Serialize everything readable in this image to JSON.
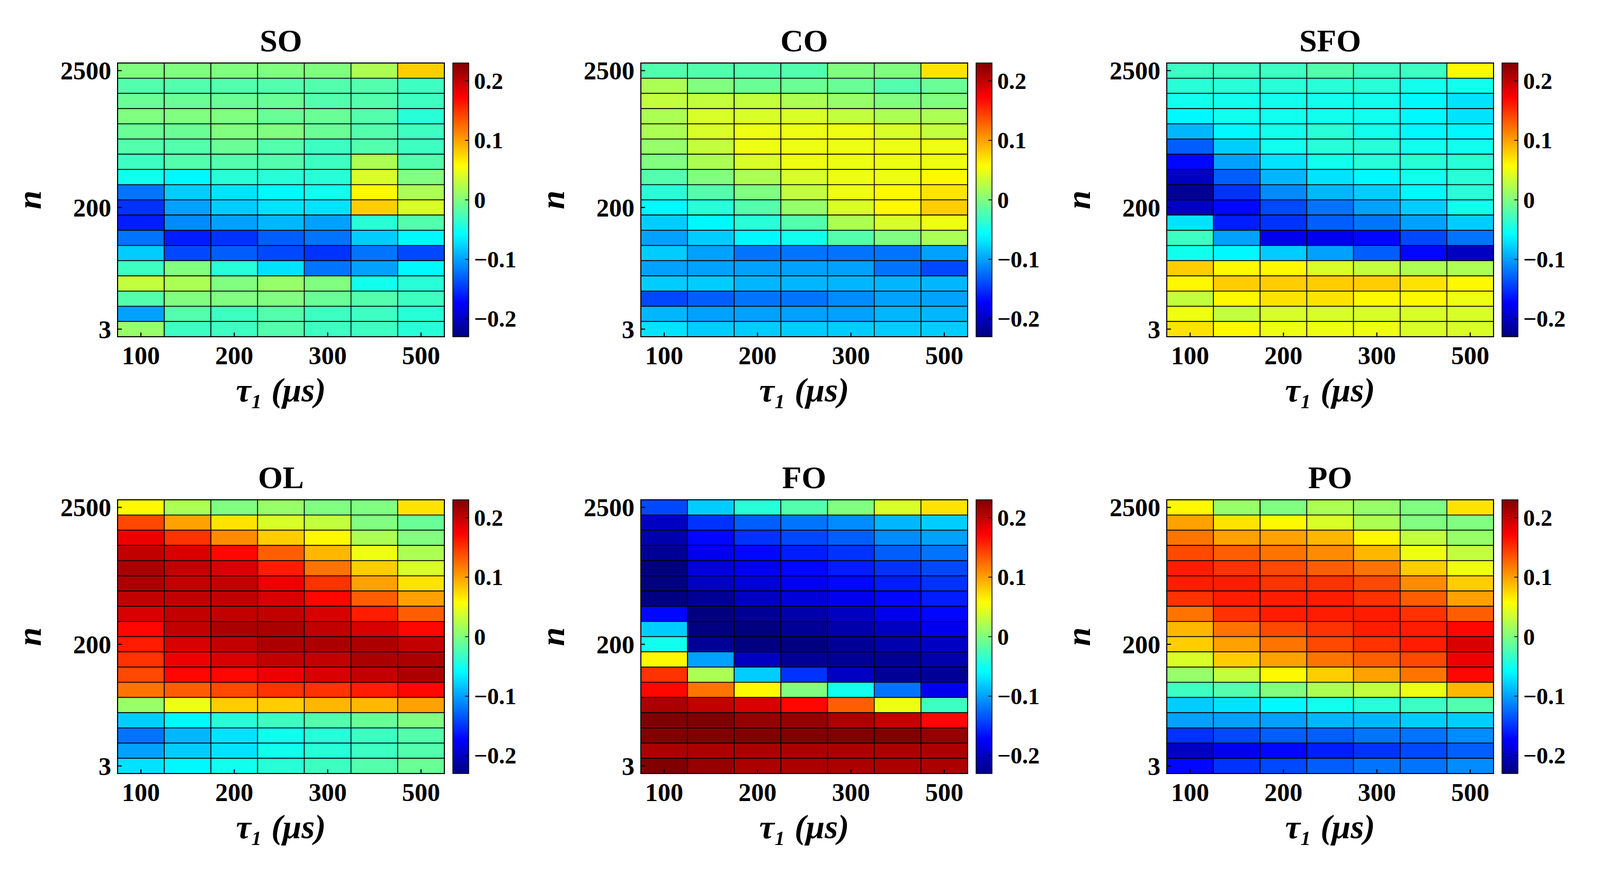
{
  "chart_data": [
    {
      "type": "heatmap",
      "title": "SO",
      "x_label": "τ₁ (μs)",
      "y_label": "n",
      "categories": [
        100,
        null,
        200,
        null,
        300,
        null,
        500
      ],
      "y_categories": [
        2500,
        null,
        null,
        null,
        null,
        null,
        null,
        null,
        null,
        200,
        null,
        null,
        null,
        null,
        null,
        null,
        null,
        3
      ],
      "values": [
        [
          0.0,
          0.0,
          0.0,
          0.0,
          0.0,
          0.02,
          0.08
        ],
        [
          -0.02,
          -0.02,
          -0.02,
          -0.02,
          -0.02,
          -0.02,
          -0.03
        ],
        [
          -0.01,
          -0.01,
          -0.01,
          -0.01,
          -0.02,
          -0.02,
          -0.03
        ],
        [
          0,
          0,
          0,
          -0.01,
          -0.01,
          -0.02,
          -0.04
        ],
        [
          -0.01,
          -0.01,
          0,
          0,
          -0.01,
          -0.02,
          -0.03
        ],
        [
          -0.02,
          -0.02,
          -0.01,
          -0.02,
          -0.03,
          -0.02,
          -0.03
        ],
        [
          -0.03,
          -0.02,
          -0.02,
          -0.02,
          -0.03,
          0.02,
          -0.02
        ],
        [
          -0.05,
          -0.06,
          -0.04,
          -0.04,
          -0.04,
          0.04,
          0
        ],
        [
          -0.12,
          -0.08,
          -0.07,
          -0.06,
          -0.05,
          0.06,
          0.02
        ],
        [
          -0.15,
          -0.1,
          -0.08,
          -0.07,
          -0.07,
          0.08,
          0.04
        ],
        [
          -0.16,
          -0.11,
          -0.1,
          -0.09,
          -0.1,
          -0.04,
          -0.02
        ],
        [
          -0.12,
          -0.16,
          -0.15,
          -0.13,
          -0.12,
          -0.08,
          -0.06
        ],
        [
          -0.08,
          -0.14,
          -0.13,
          -0.14,
          -0.15,
          -0.12,
          -0.14
        ],
        [
          -0.03,
          0.0,
          -0.04,
          -0.07,
          -0.12,
          -0.1,
          -0.06
        ],
        [
          0.03,
          0.02,
          0.0,
          0.01,
          0.0,
          -0.05,
          -0.04
        ],
        [
          -0.02,
          0,
          0,
          0,
          -0.01,
          -0.02,
          -0.03
        ],
        [
          -0.1,
          -0.02,
          -0.03,
          -0.02,
          -0.03,
          -0.03,
          -0.04
        ],
        [
          0.01,
          -0.03,
          -0.03,
          -0.02,
          -0.03,
          -0.03,
          -0.04
        ]
      ],
      "color_range": [
        -0.23,
        0.23
      ],
      "color_ticks": [
        {
          "value": -0.2,
          "label": "−0.2"
        },
        {
          "value": -0.1,
          "label": "−0.1"
        },
        0,
        0.1,
        0.2
      ]
    },
    {
      "type": "heatmap",
      "title": "CO",
      "x_label": "τ₁ (μs)",
      "y_label": "n",
      "categories": [
        100,
        null,
        200,
        null,
        300,
        null,
        500
      ],
      "y_categories": [
        2500,
        null,
        null,
        null,
        null,
        null,
        null,
        null,
        null,
        200,
        null,
        null,
        null,
        null,
        null,
        null,
        null,
        3
      ],
      "values": [
        [
          -0.02,
          -0.02,
          -0.02,
          -0.02,
          0,
          0,
          0.07
        ],
        [
          0.02,
          0,
          -0.01,
          -0.01,
          -0.01,
          -0.02,
          -0.01
        ],
        [
          0.03,
          0.03,
          0.03,
          0.02,
          0.01,
          0,
          0
        ],
        [
          0.02,
          0.04,
          0.04,
          0.04,
          0.03,
          0.02,
          0.02
        ],
        [
          0.02,
          0.04,
          0.05,
          0.05,
          0.05,
          0.04,
          0.03
        ],
        [
          0.01,
          0.03,
          0.05,
          0.05,
          0.05,
          0.05,
          0.05
        ],
        [
          0,
          0.02,
          0.04,
          0.05,
          0.05,
          0.05,
          0.05
        ],
        [
          -0.02,
          0,
          0.02,
          0.04,
          0.05,
          0.05,
          0.06
        ],
        [
          -0.04,
          -0.02,
          0.0,
          0.03,
          0.05,
          0.06,
          0.07
        ],
        [
          -0.06,
          -0.04,
          -0.02,
          0.01,
          0.04,
          0.06,
          0.08
        ],
        [
          -0.08,
          -0.06,
          -0.04,
          -0.02,
          0.02,
          0.04,
          0.05
        ],
        [
          -0.1,
          -0.08,
          -0.06,
          -0.05,
          -0.02,
          0,
          0.02
        ],
        [
          -0.08,
          -0.1,
          -0.12,
          -0.12,
          -0.12,
          -0.12,
          -0.1
        ],
        [
          -0.1,
          -0.1,
          -0.1,
          -0.1,
          -0.1,
          -0.12,
          -0.14
        ],
        [
          -0.08,
          -0.08,
          -0.09,
          -0.09,
          -0.09,
          -0.09,
          -0.09
        ],
        [
          -0.14,
          -0.13,
          -0.12,
          -0.12,
          -0.11,
          -0.1,
          -0.1
        ],
        [
          -0.09,
          -0.1,
          -0.1,
          -0.1,
          -0.1,
          -0.09,
          -0.09
        ],
        [
          -0.07,
          -0.08,
          -0.08,
          -0.08,
          -0.08,
          -0.08,
          -0.08
        ]
      ],
      "color_range": [
        -0.23,
        0.23
      ],
      "color_ticks": [
        {
          "value": -0.2,
          "label": "−0.2"
        },
        {
          "value": -0.1,
          "label": "−0.1"
        },
        0,
        0.1,
        0.2
      ]
    },
    {
      "type": "heatmap",
      "title": "SFO",
      "x_label": "τ₁ (μs)",
      "y_label": "n",
      "categories": [
        100,
        null,
        200,
        null,
        300,
        null,
        500
      ],
      "y_categories": [
        2500,
        null,
        null,
        null,
        null,
        null,
        null,
        null,
        null,
        200,
        null,
        null,
        null,
        null,
        null,
        null,
        null,
        3
      ],
      "values": [
        [
          -0.03,
          -0.03,
          -0.03,
          -0.02,
          -0.03,
          -0.03,
          0.06
        ],
        [
          -0.04,
          -0.04,
          -0.04,
          -0.04,
          -0.04,
          -0.05,
          -0.05
        ],
        [
          -0.05,
          -0.05,
          -0.05,
          -0.05,
          -0.05,
          -0.06,
          -0.07
        ],
        [
          -0.06,
          -0.05,
          -0.05,
          -0.05,
          -0.05,
          -0.06,
          -0.07
        ],
        [
          -0.09,
          -0.06,
          -0.05,
          -0.04,
          -0.05,
          -0.06,
          -0.06
        ],
        [
          -0.13,
          -0.08,
          -0.05,
          -0.04,
          -0.04,
          -0.05,
          -0.05
        ],
        [
          -0.17,
          -0.1,
          -0.07,
          -0.05,
          -0.04,
          -0.04,
          -0.04
        ],
        [
          -0.2,
          -0.13,
          -0.09,
          -0.07,
          -0.06,
          -0.05,
          -0.04
        ],
        [
          -0.22,
          -0.15,
          -0.11,
          -0.09,
          -0.08,
          -0.06,
          -0.04
        ],
        [
          -0.2,
          -0.17,
          -0.14,
          -0.12,
          -0.1,
          -0.08,
          -0.05
        ],
        [
          -0.07,
          -0.16,
          -0.15,
          -0.13,
          -0.12,
          -0.1,
          -0.08
        ],
        [
          -0.03,
          -0.1,
          -0.18,
          -0.18,
          -0.17,
          -0.14,
          -0.12
        ],
        [
          -0.05,
          -0.06,
          -0.08,
          -0.1,
          -0.13,
          -0.17,
          -0.2
        ],
        [
          0.08,
          0.06,
          0.06,
          0.04,
          0.03,
          0.02,
          0.02
        ],
        [
          0.06,
          0.08,
          0.08,
          0.08,
          0.08,
          0.07,
          0.06
        ],
        [
          0.03,
          0.06,
          0.07,
          0.07,
          0.06,
          0.06,
          0.05
        ],
        [
          0.05,
          0.03,
          0.04,
          0.04,
          0.04,
          0.04,
          0.04
        ],
        [
          0.07,
          0.06,
          0.05,
          0.05,
          0.05,
          0.04,
          0.04
        ]
      ],
      "color_range": [
        -0.23,
        0.23
      ],
      "color_ticks": [
        {
          "value": -0.2,
          "label": "−0.2"
        },
        {
          "value": -0.1,
          "label": "−0.1"
        },
        0,
        0.1,
        0.2
      ]
    },
    {
      "type": "heatmap",
      "title": "OL",
      "x_label": "τ₁ (μs)",
      "y_label": "n",
      "categories": [
        100,
        null,
        200,
        null,
        300,
        null,
        500
      ],
      "y_categories": [
        2500,
        null,
        null,
        null,
        null,
        null,
        null,
        null,
        null,
        200,
        null,
        null,
        null,
        null,
        null,
        null,
        null,
        3
      ],
      "values": [
        [
          0.06,
          0.02,
          0.0,
          0.01,
          0.0,
          0.0,
          0.07
        ],
        [
          0.14,
          0.1,
          0.07,
          0.04,
          0.03,
          0.0,
          -0.01
        ],
        [
          0.18,
          0.15,
          0.11,
          0.08,
          0.06,
          0.02,
          0.0
        ],
        [
          0.2,
          0.19,
          0.17,
          0.13,
          0.09,
          0.05,
          0.02
        ],
        [
          0.21,
          0.2,
          0.19,
          0.16,
          0.12,
          0.08,
          0.04
        ],
        [
          0.21,
          0.2,
          0.2,
          0.18,
          0.15,
          0.1,
          0.07
        ],
        [
          0.2,
          0.2,
          0.2,
          0.19,
          0.17,
          0.13,
          0.1
        ],
        [
          0.19,
          0.2,
          0.2,
          0.2,
          0.19,
          0.16,
          0.13
        ],
        [
          0.17,
          0.2,
          0.21,
          0.21,
          0.2,
          0.19,
          0.17
        ],
        [
          0.16,
          0.19,
          0.2,
          0.21,
          0.21,
          0.21,
          0.2
        ],
        [
          0.15,
          0.18,
          0.19,
          0.2,
          0.2,
          0.21,
          0.21
        ],
        [
          0.14,
          0.17,
          0.17,
          0.18,
          0.19,
          0.2,
          0.21
        ],
        [
          0.12,
          0.13,
          0.14,
          0.15,
          0.15,
          0.16,
          0.17
        ],
        [
          0.01,
          0.05,
          0.08,
          0.08,
          0.09,
          0.09,
          0.1
        ],
        [
          -0.08,
          -0.06,
          -0.04,
          -0.03,
          -0.02,
          -0.01,
          0
        ],
        [
          -0.12,
          -0.09,
          -0.07,
          -0.05,
          -0.04,
          -0.03,
          -0.02
        ],
        [
          -0.1,
          -0.08,
          -0.07,
          -0.05,
          -0.04,
          -0.03,
          -0.02
        ],
        [
          -0.07,
          -0.06,
          -0.05,
          -0.04,
          -0.03,
          -0.02,
          -0.01
        ]
      ],
      "color_range": [
        -0.23,
        0.23
      ],
      "color_ticks": [
        {
          "value": -0.2,
          "label": "−0.2"
        },
        {
          "value": -0.1,
          "label": "−0.1"
        },
        0,
        0.1,
        0.2
      ]
    },
    {
      "type": "heatmap",
      "title": "FO",
      "x_label": "τ₁ (μs)",
      "y_label": "n",
      "categories": [
        100,
        null,
        200,
        null,
        300,
        null,
        500
      ],
      "y_categories": [
        2500,
        null,
        null,
        null,
        null,
        null,
        null,
        null,
        null,
        200,
        null,
        null,
        null,
        null,
        null,
        null,
        null,
        3
      ],
      "values": [
        [
          -0.14,
          -0.08,
          -0.04,
          -0.02,
          0,
          0.04,
          0.07
        ],
        [
          -0.2,
          -0.15,
          -0.13,
          -0.12,
          -0.11,
          -0.09,
          -0.08
        ],
        [
          -0.21,
          -0.17,
          -0.15,
          -0.14,
          -0.13,
          -0.11,
          -0.1
        ],
        [
          -0.22,
          -0.18,
          -0.17,
          -0.16,
          -0.15,
          -0.13,
          -0.12
        ],
        [
          -0.23,
          -0.19,
          -0.18,
          -0.17,
          -0.16,
          -0.15,
          -0.14
        ],
        [
          -0.24,
          -0.2,
          -0.19,
          -0.18,
          -0.17,
          -0.16,
          -0.15
        ],
        [
          -0.23,
          -0.22,
          -0.2,
          -0.19,
          -0.18,
          -0.17,
          -0.16
        ],
        [
          -0.17,
          -0.23,
          -0.22,
          -0.21,
          -0.2,
          -0.18,
          -0.17
        ],
        [
          -0.08,
          -0.23,
          -0.23,
          -0.22,
          -0.21,
          -0.2,
          -0.18
        ],
        [
          -0.05,
          -0.22,
          -0.23,
          -0.23,
          -0.22,
          -0.21,
          -0.2
        ],
        [
          0.06,
          -0.1,
          -0.2,
          -0.22,
          -0.22,
          -0.22,
          -0.21
        ],
        [
          0.15,
          0.02,
          -0.08,
          -0.15,
          -0.2,
          -0.22,
          -0.22
        ],
        [
          0.17,
          0.12,
          0.06,
          0.0,
          -0.05,
          -0.12,
          -0.18
        ],
        [
          0.21,
          0.2,
          0.19,
          0.17,
          0.13,
          0.05,
          -0.03
        ],
        [
          0.23,
          0.23,
          0.22,
          0.22,
          0.21,
          0.2,
          0.17
        ],
        [
          0.24,
          0.24,
          0.24,
          0.24,
          0.23,
          0.23,
          0.22
        ],
        [
          0.21,
          0.21,
          0.21,
          0.21,
          0.21,
          0.21,
          0.21
        ],
        [
          0.23,
          0.22,
          0.21,
          0.21,
          0.21,
          0.21,
          0.21
        ]
      ],
      "color_range": [
        -0.23,
        0.23
      ],
      "color_ticks": [
        {
          "value": -0.2,
          "label": "−0.2"
        },
        {
          "value": -0.1,
          "label": "−0.1"
        },
        0,
        0.1,
        0.2
      ]
    },
    {
      "type": "heatmap",
      "title": "PO",
      "x_label": "τ₁ (μs)",
      "y_label": "n",
      "categories": [
        100,
        null,
        200,
        null,
        300,
        null,
        500
      ],
      "y_categories": [
        2500,
        null,
        null,
        null,
        null,
        null,
        null,
        null,
        null,
        200,
        null,
        null,
        null,
        null,
        null,
        null,
        null,
        3
      ],
      "values": [
        [
          0.06,
          0.01,
          0.0,
          0.02,
          0.01,
          0.0,
          0.07
        ],
        [
          0.1,
          0.07,
          0.06,
          0.04,
          0.02,
          0.0,
          0.0
        ],
        [
          0.12,
          0.1,
          0.1,
          0.09,
          0.06,
          0.03,
          0.01
        ],
        [
          0.14,
          0.13,
          0.12,
          0.11,
          0.09,
          0.05,
          0.03
        ],
        [
          0.16,
          0.15,
          0.14,
          0.13,
          0.12,
          0.08,
          0.05
        ],
        [
          0.16,
          0.16,
          0.15,
          0.15,
          0.14,
          0.11,
          0.08
        ],
        [
          0.15,
          0.16,
          0.16,
          0.16,
          0.15,
          0.13,
          0.1
        ],
        [
          0.12,
          0.15,
          0.16,
          0.16,
          0.16,
          0.15,
          0.13
        ],
        [
          0.09,
          0.12,
          0.14,
          0.15,
          0.16,
          0.16,
          0.17
        ],
        [
          0.08,
          0.1,
          0.12,
          0.14,
          0.15,
          0.16,
          0.19
        ],
        [
          0.04,
          0.08,
          0.1,
          0.12,
          0.13,
          0.14,
          0.18
        ],
        [
          0.01,
          0.03,
          0.06,
          0.08,
          0.1,
          0.12,
          0.17
        ],
        [
          -0.03,
          -0.02,
          0.0,
          0.02,
          0.03,
          0.05,
          0.09
        ],
        [
          -0.08,
          -0.07,
          -0.06,
          -0.05,
          -0.04,
          -0.03,
          -0.02
        ],
        [
          -0.1,
          -0.1,
          -0.1,
          -0.09,
          -0.09,
          -0.08,
          -0.08
        ],
        [
          -0.15,
          -0.14,
          -0.13,
          -0.13,
          -0.12,
          -0.12,
          -0.11
        ],
        [
          -0.2,
          -0.18,
          -0.17,
          -0.16,
          -0.15,
          -0.14,
          -0.13
        ],
        [
          -0.17,
          -0.15,
          -0.14,
          -0.13,
          -0.12,
          -0.12,
          -0.11
        ]
      ],
      "color_range": [
        -0.23,
        0.23
      ],
      "color_ticks": [
        {
          "value": -0.2,
          "label": "−0.2"
        },
        {
          "value": -0.1,
          "label": "−0.1"
        },
        0,
        0.1,
        0.2
      ]
    }
  ]
}
